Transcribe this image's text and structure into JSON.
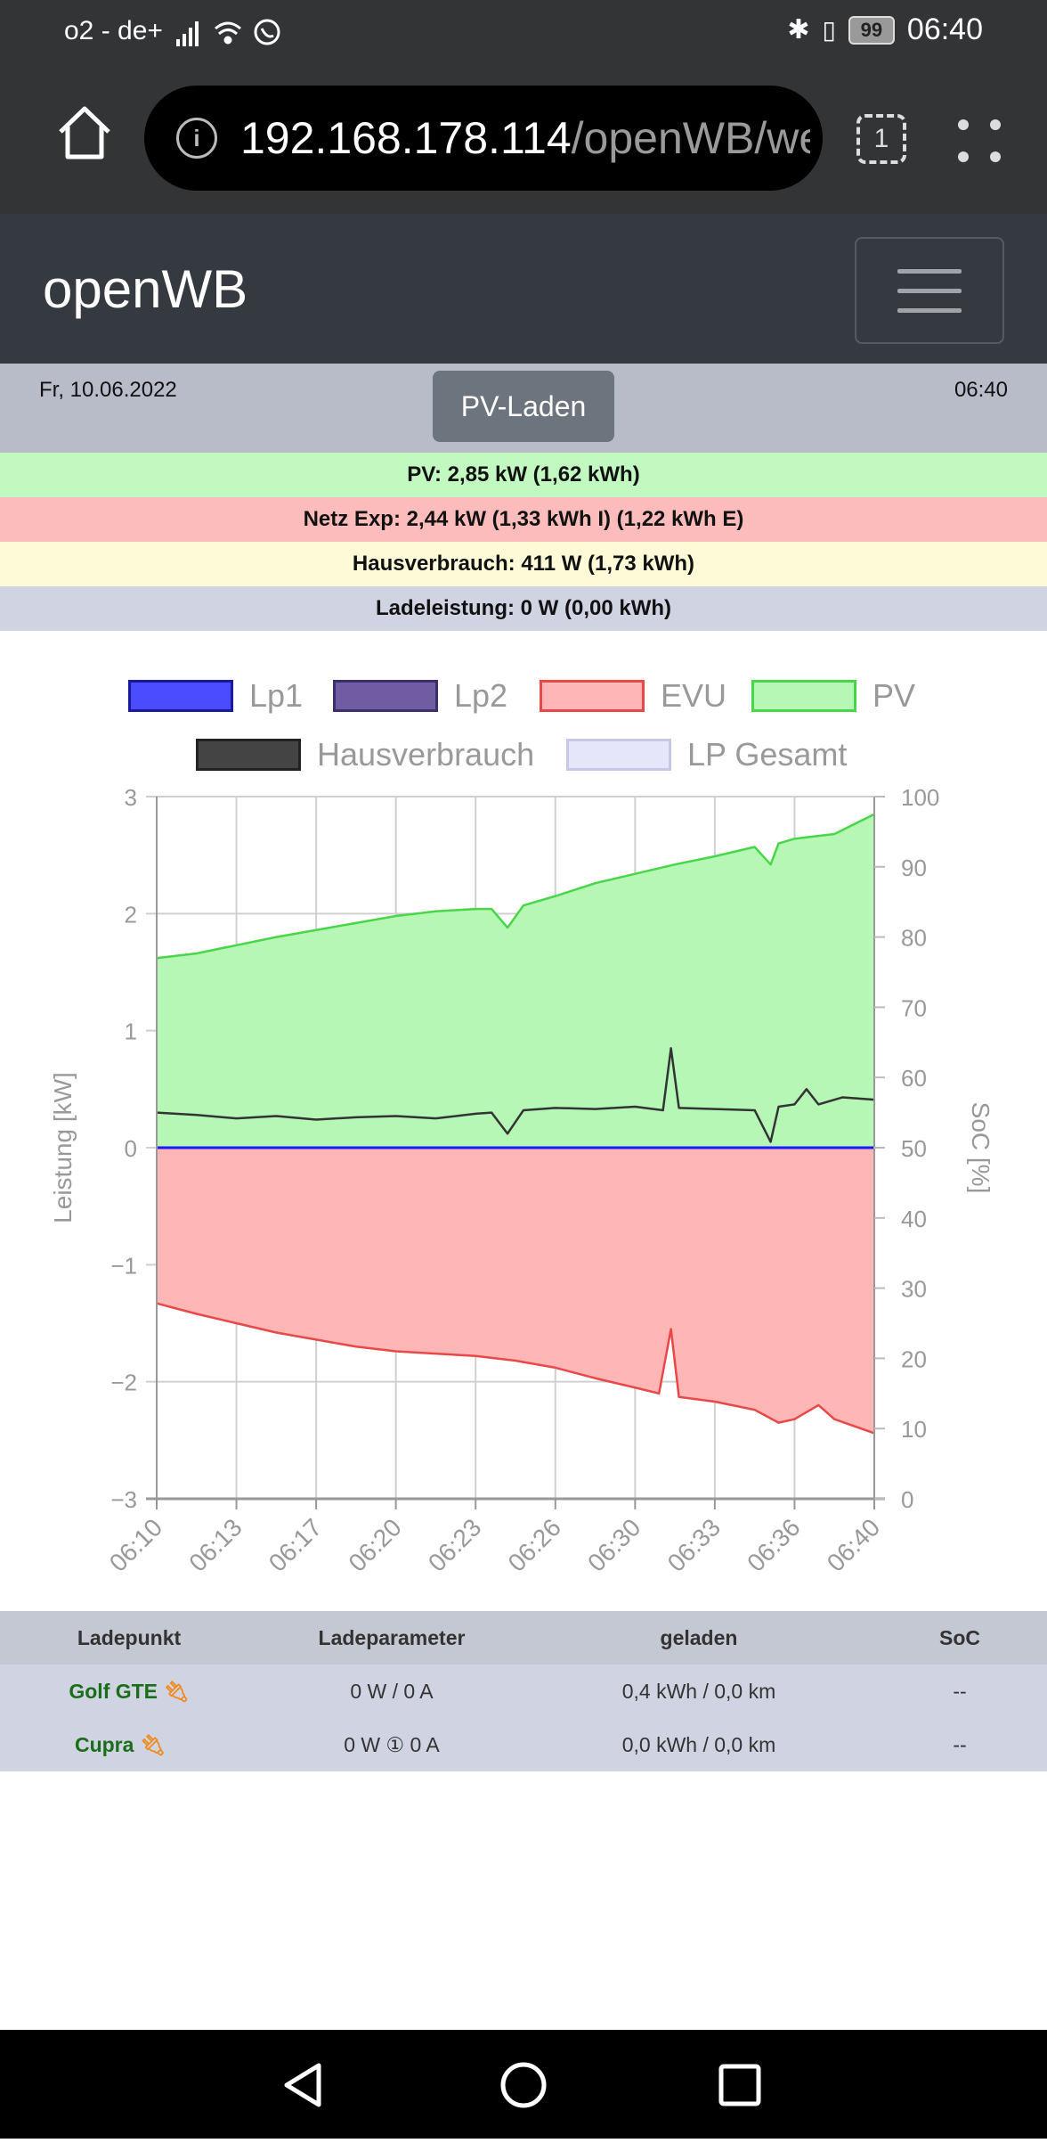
{
  "status_bar": {
    "carrier": "o2 - de+",
    "battery": "99",
    "time": "06:40",
    "icons": [
      "signal-icon",
      "wifi-icon",
      "whatsapp-icon",
      "bluetooth-icon",
      "vibrate-icon",
      "battery-icon"
    ]
  },
  "browser": {
    "url_host": "192.168.178.114",
    "url_path": "/openWB/web/index.php",
    "tab_count": "1"
  },
  "navbar": {
    "brand": "openWB"
  },
  "header": {
    "date": "Fr, 10.06.2022",
    "time": "06:40",
    "mode_button": "PV-Laden"
  },
  "stats": {
    "pv": "PV: 2,85 kW (1,62 kWh)",
    "netz": "Netz Exp: 2,44 kW (1,33 kWh I) (1,22 kWh E)",
    "haus": "Hausverbrauch: 411 W (1,73 kWh)",
    "lade": "Ladeleistung: 0 W (0,00 kWh)",
    "colors": {
      "pv": "#c1f9c1",
      "netz": "#fdbcbc",
      "haus": "#fefad8",
      "lade": "#d0d4e2"
    }
  },
  "legend": [
    {
      "label": "Lp1",
      "fill": "#4b4bff",
      "border": "#1a1aa0"
    },
    {
      "label": "Lp2",
      "fill": "#6f5ca3",
      "border": "#3c2f6b"
    },
    {
      "label": "EVU",
      "fill": "#ffb6b6",
      "border": "#e84848"
    },
    {
      "label": "PV",
      "fill": "#b6f7b6",
      "border": "#49d649"
    },
    {
      "label": "Hausverbrauch",
      "fill": "#444444",
      "border": "#222222"
    },
    {
      "label": "LP Gesamt",
      "fill": "#e6e6fa",
      "border": "#c8c8e6"
    }
  ],
  "chart_data": {
    "type": "area",
    "ylabel": "Leistung [kW]",
    "y2label": "SoC [%]",
    "ylim": [
      -3,
      3
    ],
    "y2lim": [
      0,
      100
    ],
    "yticks": [
      "3",
      "2",
      "1",
      "0",
      "−1",
      "−2",
      "−3"
    ],
    "y2ticks": [
      "100",
      "90",
      "80",
      "70",
      "60",
      "50",
      "40",
      "30",
      "20",
      "10",
      "0"
    ],
    "xticks": [
      "06:10",
      "06:13",
      "06:17",
      "06:20",
      "06:23",
      "06:26",
      "06:30",
      "06:33",
      "06:36",
      "06:40"
    ],
    "grid": true,
    "series": [
      {
        "name": "PV",
        "color": "#49d649",
        "fill": "#b6f7b6",
        "x": [
          0,
          0.5,
          1,
          1.5,
          2,
          2.5,
          3,
          3.5,
          4,
          4.2,
          4.4,
          4.6,
          5,
          5.5,
          6,
          6.5,
          7,
          7.5,
          7.7,
          7.8,
          8,
          8.5,
          9
        ],
        "values": [
          1.62,
          1.66,
          1.73,
          1.8,
          1.86,
          1.92,
          1.98,
          2.02,
          2.04,
          2.04,
          1.88,
          2.07,
          2.15,
          2.26,
          2.34,
          2.42,
          2.49,
          2.57,
          2.42,
          2.6,
          2.64,
          2.68,
          2.85
        ]
      },
      {
        "name": "Hausverbrauch",
        "color": "#333333",
        "x": [
          0,
          0.5,
          1,
          1.5,
          2,
          2.5,
          3,
          3.5,
          4,
          4.2,
          4.4,
          4.6,
          5,
          5.5,
          6,
          6.35,
          6.45,
          6.55,
          7,
          7.5,
          7.7,
          7.8,
          8,
          8.15,
          8.3,
          8.6,
          9
        ],
        "values": [
          0.3,
          0.28,
          0.25,
          0.27,
          0.24,
          0.26,
          0.27,
          0.25,
          0.29,
          0.3,
          0.12,
          0.32,
          0.34,
          0.33,
          0.35,
          0.32,
          0.85,
          0.34,
          0.33,
          0.32,
          0.05,
          0.35,
          0.37,
          0.5,
          0.37,
          0.43,
          0.41
        ]
      },
      {
        "name": "EVU",
        "color": "#e84848",
        "fill": "#ffb6b6",
        "x": [
          0,
          0.5,
          1,
          1.5,
          2,
          2.5,
          3,
          3.5,
          4,
          4.5,
          5,
          5.5,
          6,
          6.3,
          6.45,
          6.55,
          7,
          7.5,
          7.8,
          8,
          8.3,
          8.5,
          9
        ],
        "values": [
          -1.33,
          -1.42,
          -1.5,
          -1.58,
          -1.64,
          -1.7,
          -1.74,
          -1.76,
          -1.78,
          -1.82,
          -1.88,
          -1.97,
          -2.05,
          -2.1,
          -1.55,
          -2.13,
          -2.17,
          -2.24,
          -2.35,
          -2.32,
          -2.2,
          -2.32,
          -2.44
        ]
      },
      {
        "name": "Lp1",
        "color": "#1a1aff",
        "x": [
          0,
          9
        ],
        "values": [
          0,
          0
        ]
      },
      {
        "name": "Lp2",
        "color": "#6f5ca3",
        "x": [
          0,
          9
        ],
        "values": [
          0,
          0
        ]
      },
      {
        "name": "LP Gesamt",
        "color": "#c8c8e6",
        "x": [
          0,
          9
        ],
        "values": [
          0,
          0
        ]
      }
    ]
  },
  "table": {
    "headers": [
      "Ladepunkt",
      "Ladeparameter",
      "geladen",
      "SoC"
    ],
    "rows": [
      {
        "name": "Golf GTE",
        "params": "0 W / 0 A",
        "charged": "0,4 kWh / 0,0 km",
        "soc": "--"
      },
      {
        "name": "Cupra",
        "params": "0 W ① 0 A",
        "charged": "0,0 kWh / 0,0 km",
        "soc": "--"
      }
    ],
    "plug_icon": "plug-icon"
  },
  "android_nav": [
    "back-icon",
    "home-circle-icon",
    "recents-icon"
  ]
}
